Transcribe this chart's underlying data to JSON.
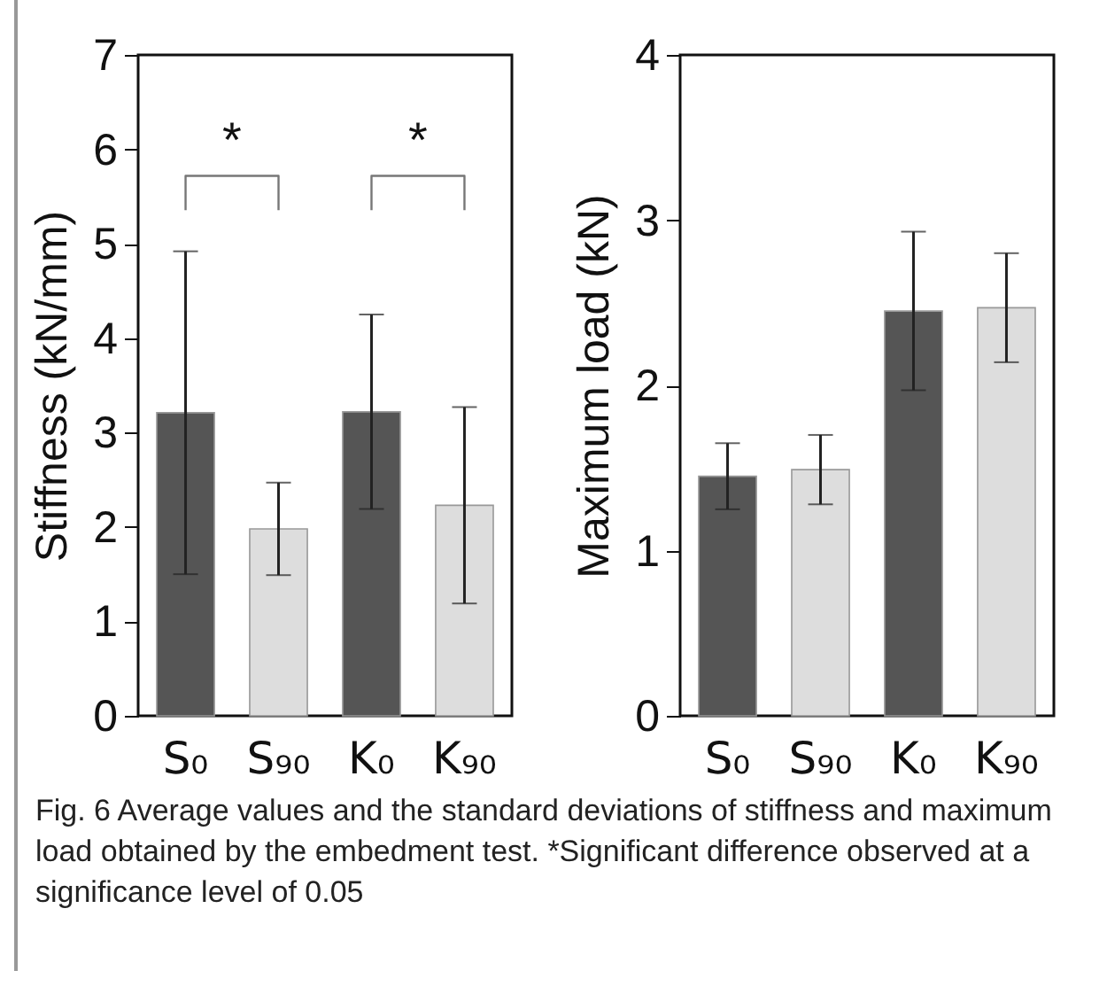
{
  "chart_data": [
    {
      "type": "bar",
      "categories": [
        "S₀",
        "S₉₀",
        "K₀",
        "K₉₀"
      ],
      "values": [
        3.21,
        1.98,
        3.22,
        2.23
      ],
      "errors": [
        1.71,
        0.49,
        1.03,
        1.04
      ],
      "colors": [
        "#555555",
        "#dddddd",
        "#555555",
        "#dddddd"
      ],
      "ylabel": "Stiffness (kN/mm)",
      "ylim": [
        0,
        7
      ],
      "yticks": [
        0,
        1,
        2,
        3,
        4,
        5,
        6,
        7
      ],
      "annotations": [
        "*",
        "*"
      ]
    },
    {
      "type": "bar",
      "categories": [
        "S₀",
        "S₉₀",
        "K₀",
        "K₉₀"
      ],
      "values": [
        1.45,
        1.49,
        2.45,
        2.47
      ],
      "errors": [
        0.2,
        0.21,
        0.48,
        0.33
      ],
      "colors": [
        "#555555",
        "#dddddd",
        "#555555",
        "#dddddd"
      ],
      "ylabel": "Maximum load (kN)",
      "ylim": [
        0,
        4
      ],
      "yticks": [
        0,
        1,
        2,
        3,
        4
      ],
      "annotations": [
        "Fig. 6 Average values and the standard deviations of stiffness and maximum load obtained by the embedment test. *Significant difference observed at a significance level of 0.05"
      ]
    }
  ]
}
